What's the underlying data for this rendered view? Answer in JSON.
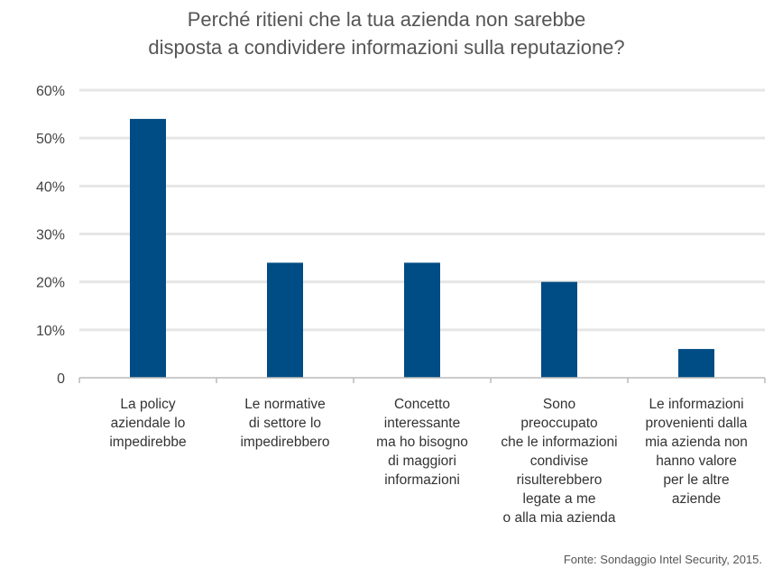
{
  "title_lines": [
    "Perché ritieni che la tua azienda non sarebbe",
    "disposta a condividere informazioni sulla reputazione?"
  ],
  "source": "Fonte: Sondaggio Intel Security, 2015.",
  "colors": {
    "bar": "#004C84",
    "grid": "#E6E6E6",
    "axis": "#BBBBBB"
  },
  "chart_data": {
    "type": "bar",
    "title": "Perché ritieni che la tua azienda non sarebbe disposta a condividere informazioni sulla reputazione?",
    "xlabel": "",
    "ylabel": "",
    "ylim": [
      0,
      60
    ],
    "grid": true,
    "yticks": [
      "0",
      "10%",
      "20%",
      "30%",
      "40%",
      "50%",
      "60%"
    ],
    "categories": [
      [
        "La policy",
        "aziendale lo",
        "impedirebbe"
      ],
      [
        "Le normative",
        "di settore lo",
        "impedirebbero"
      ],
      [
        "Concetto",
        "interessante",
        "ma ho bisogno",
        "di maggiori",
        "informazioni"
      ],
      [
        "Sono",
        "preoccupato",
        "che le informazioni",
        "condivise",
        "risulterebbero",
        "legate a me",
        "o alla mia azienda"
      ],
      [
        "Le informazioni",
        "provenienti dalla",
        "mia azienda non",
        "hanno valore",
        "per le altre",
        "aziende"
      ]
    ],
    "values": [
      54,
      24,
      24,
      20,
      6
    ]
  }
}
